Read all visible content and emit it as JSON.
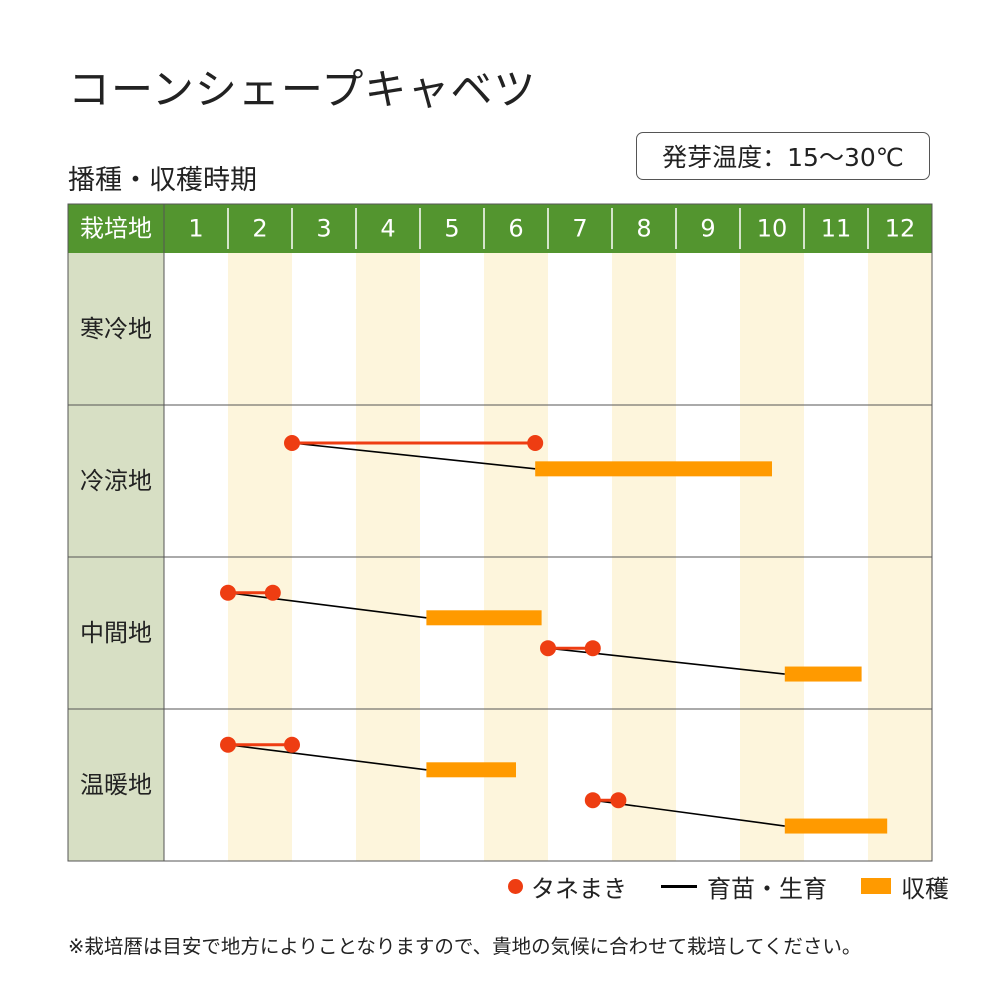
{
  "title": "コーンシェープキャベツ",
  "subtitle": "播種・収穫時期",
  "germination_temp": "発芽温度：15～30℃",
  "legend": {
    "sowing": "タネまき",
    "growing": "育苗・生育",
    "harvest": "収穫"
  },
  "note": "※栽培暦は目安で地方によりことなりますので、貴地の気候に合わせて栽培してください。",
  "colors": {
    "header": "#53952f",
    "region_cell": "#d7dfc4",
    "stripe": "#fdf5dc",
    "sowing": "#ee3d12",
    "growing": "#000000",
    "harvest": "#ff9a00"
  },
  "chart_data": {
    "type": "table",
    "column_header": "栽培地",
    "months": [
      "1",
      "2",
      "3",
      "4",
      "5",
      "6",
      "7",
      "8",
      "9",
      "10",
      "11",
      "12"
    ],
    "regions": [
      {
        "name": "寒冷地",
        "schedules": []
      },
      {
        "name": "冷涼地",
        "schedules": [
          {
            "sowing": [
              3.0,
              6.8
            ],
            "harvest": [
              6.8,
              10.5
            ]
          }
        ]
      },
      {
        "name": "中間地",
        "schedules": [
          {
            "sowing": [
              2.0,
              2.7
            ],
            "harvest": [
              5.1,
              6.9
            ]
          },
          {
            "sowing": [
              7.0,
              7.7
            ],
            "harvest": [
              10.7,
              11.9
            ]
          }
        ]
      },
      {
        "name": "温暖地",
        "schedules": [
          {
            "sowing": [
              2.0,
              3.0
            ],
            "harvest": [
              5.1,
              6.5
            ]
          },
          {
            "sowing": [
              7.7,
              8.1
            ],
            "harvest": [
              10.7,
              12.3
            ]
          }
        ]
      }
    ]
  }
}
